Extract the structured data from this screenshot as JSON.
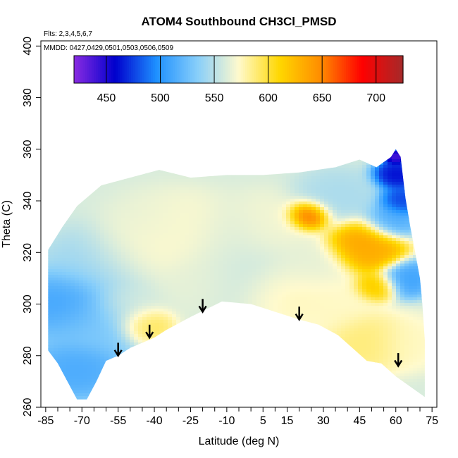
{
  "chart_data": {
    "type": "heatmap",
    "title": "ATOM4 Southbound CH3Cl_PMSD",
    "xlabel": "Latitude (deg N)",
    "ylabel": "Theta (C)",
    "annotation_flights": "Flts: 2,3,4,5,6,7",
    "annotation_dates": "MMDD: 0427,0429,0501,0503,0506,0509",
    "xlim": [
      -87,
      77
    ],
    "ylim": [
      260,
      402
    ],
    "x_ticks": [
      -85,
      -70,
      -55,
      -40,
      -25,
      -10,
      5,
      15,
      30,
      45,
      60,
      75
    ],
    "x_tick_labels": [
      "-85",
      "-70",
      "-55",
      "-40",
      "-25",
      "-10",
      "5",
      "15",
      "30",
      "45",
      "60",
      "75"
    ],
    "y_ticks": [
      260,
      280,
      300,
      320,
      340,
      360,
      380,
      400
    ],
    "y_tick_labels": [
      "260",
      "280",
      "300",
      "320",
      "340",
      "360",
      "380",
      "400"
    ],
    "colorbar": {
      "range": [
        420,
        725
      ],
      "ticks": [
        450,
        500,
        550,
        600,
        650,
        700
      ],
      "tick_labels": [
        "450",
        "500",
        "550",
        "600",
        "650",
        "700"
      ],
      "colors": [
        "#8a2be2",
        "#0000cd",
        "#1e90ff",
        "#87cefa",
        "#fffacd",
        "#ffd700",
        "#ff8c00",
        "#ff0000",
        "#a52a2a"
      ]
    },
    "domain_top_edge": [
      [
        -84,
        321
      ],
      [
        -78,
        330
      ],
      [
        -72,
        338
      ],
      [
        -62,
        346
      ],
      [
        -50,
        349
      ],
      [
        -38,
        352
      ],
      [
        -25,
        349
      ],
      [
        -10,
        350
      ],
      [
        5,
        350
      ],
      [
        20,
        351
      ],
      [
        35,
        353
      ],
      [
        45,
        356
      ],
      [
        52,
        353
      ],
      [
        58,
        357
      ],
      [
        60,
        360
      ],
      [
        62,
        357
      ],
      [
        64,
        341
      ],
      [
        66,
        330
      ],
      [
        68,
        320
      ],
      [
        70,
        310
      ],
      [
        71,
        300
      ],
      [
        72,
        286
      ]
    ],
    "domain_bottom_edge": [
      [
        -84,
        282
      ],
      [
        -80,
        277
      ],
      [
        -76,
        270
      ],
      [
        -72,
        263
      ],
      [
        -68,
        263
      ],
      [
        -64,
        270
      ],
      [
        -60,
        278
      ],
      [
        -55,
        280
      ],
      [
        -50,
        283
      ],
      [
        -45,
        285
      ],
      [
        -40,
        287
      ],
      [
        -35,
        290
      ],
      [
        -25,
        295
      ],
      [
        -12,
        301
      ],
      [
        0,
        300
      ],
      [
        10,
        297
      ],
      [
        20,
        294
      ],
      [
        28,
        292
      ],
      [
        36,
        288
      ],
      [
        42,
        283
      ],
      [
        48,
        278
      ],
      [
        54,
        277
      ],
      [
        60,
        272
      ],
      [
        66,
        268
      ],
      [
        72,
        264
      ]
    ],
    "zones": [
      {
        "x": -76,
        "y": 300,
        "value": 505,
        "spread": 9
      },
      {
        "x": -72,
        "y": 275,
        "value": 510,
        "spread": 8
      },
      {
        "x": -62,
        "y": 315,
        "value": 540,
        "spread": 10
      },
      {
        "x": -65,
        "y": 292,
        "value": 530,
        "spread": 9
      },
      {
        "x": -52,
        "y": 300,
        "value": 560,
        "spread": 7
      },
      {
        "x": -48,
        "y": 320,
        "value": 575,
        "spread": 9
      },
      {
        "x": -44,
        "y": 292,
        "value": 600,
        "spread": 5
      },
      {
        "x": -40,
        "y": 330,
        "value": 565,
        "spread": 9
      },
      {
        "x": -28,
        "y": 328,
        "value": 575,
        "spread": 10
      },
      {
        "x": -20,
        "y": 310,
        "value": 565,
        "spread": 9
      },
      {
        "x": -10,
        "y": 325,
        "value": 560,
        "spread": 10
      },
      {
        "x": 0,
        "y": 310,
        "value": 555,
        "spread": 10
      },
      {
        "x": 8,
        "y": 330,
        "value": 570,
        "spread": 9
      },
      {
        "x": 12,
        "y": 305,
        "value": 580,
        "spread": 8
      },
      {
        "x": 24,
        "y": 334,
        "value": 695,
        "spread": 4
      },
      {
        "x": 22,
        "y": 315,
        "value": 565,
        "spread": 8
      },
      {
        "x": 30,
        "y": 300,
        "value": 575,
        "spread": 9
      },
      {
        "x": 36,
        "y": 340,
        "value": 545,
        "spread": 8
      },
      {
        "x": 45,
        "y": 325,
        "value": 640,
        "spread": 6
      },
      {
        "x": 50,
        "y": 320,
        "value": 635,
        "spread": 6
      },
      {
        "x": 52,
        "y": 307,
        "value": 625,
        "spread": 4
      },
      {
        "x": 48,
        "y": 285,
        "value": 590,
        "spread": 8
      },
      {
        "x": 57,
        "y": 332,
        "value": 510,
        "spread": 5
      },
      {
        "x": 62,
        "y": 340,
        "value": 470,
        "spread": 4
      },
      {
        "x": 60,
        "y": 350,
        "value": 455,
        "spread": 4
      },
      {
        "x": 60,
        "y": 357,
        "value": 430,
        "spread": 2
      },
      {
        "x": 64,
        "y": 310,
        "value": 505,
        "spread": 5
      },
      {
        "x": 66,
        "y": 285,
        "value": 575,
        "spread": 7
      }
    ],
    "background_value": 560,
    "arrows": [
      {
        "x": -55,
        "y_top": 285,
        "y_tip": 280
      },
      {
        "x": -42,
        "y_top": 292,
        "y_tip": 287
      },
      {
        "x": -20,
        "y_top": 302,
        "y_tip": 297
      },
      {
        "x": 20,
        "y_top": 299,
        "y_tip": 294
      },
      {
        "x": 61,
        "y_top": 281,
        "y_tip": 276
      }
    ]
  }
}
